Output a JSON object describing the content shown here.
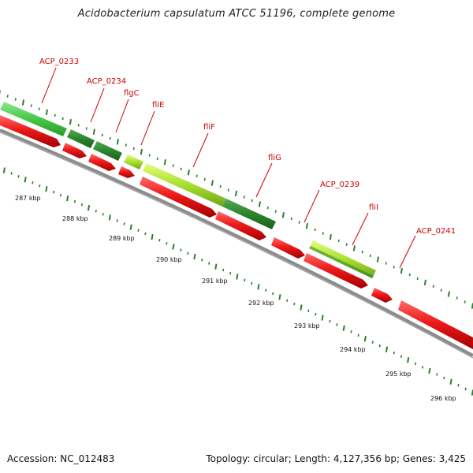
{
  "title": "Acidobacterium capsulatum ATCC 51196, complete genome",
  "footer": {
    "accession": "Accession: NC_012483",
    "topology": "Topology: circular; Length: 4,127,356 bp; Genes: 3,425"
  },
  "colors": {
    "gene_label": "#cc0000",
    "ruler": "#2e7d32",
    "backbone": "#8c8c8c",
    "forward_light": "#4cca4c",
    "forward_dark": "#2e8b2e",
    "forward_lime": "#a6e22e",
    "reverse": "#e01010"
  },
  "kbp_labels": [
    "287 kbp",
    "288 kbp",
    "289 kbp",
    "290 kbp",
    "291 kbp",
    "292 kbp",
    "293 kbp",
    "294 kbp",
    "295 kbp",
    "296 kbp"
  ],
  "gene_labels": [
    "ACP_0233",
    "ACP_0234",
    "flgC",
    "fliE",
    "fliF",
    "fliG",
    "ACP_0239",
    "fliI",
    "ACP_0241"
  ]
}
